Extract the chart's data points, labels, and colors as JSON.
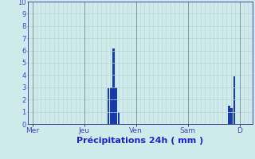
{
  "title": "Précipitations 24h ( mm )",
  "background_color": "#ceeaea",
  "grid_color": "#b8d4d4",
  "bar_color": "#1a3aaa",
  "ylim": [
    0,
    10
  ],
  "yticks": [
    0,
    1,
    2,
    3,
    4,
    5,
    6,
    7,
    8,
    9,
    10
  ],
  "day_labels": [
    "Mer",
    "Jeu",
    "Ven",
    "Sam",
    "D"
  ],
  "day_positions": [
    0,
    60,
    120,
    180,
    240
  ],
  "xlim": [
    -5,
    255
  ],
  "bars": [
    {
      "x": 88,
      "height": 2.9
    },
    {
      "x": 91,
      "height": 3.0
    },
    {
      "x": 94,
      "height": 6.2
    },
    {
      "x": 97,
      "height": 3.0
    },
    {
      "x": 100,
      "height": 1.0
    },
    {
      "x": 228,
      "height": 1.5
    },
    {
      "x": 231,
      "height": 1.3
    },
    {
      "x": 234,
      "height": 3.9
    }
  ],
  "xlabel_color": "#2222cc",
  "tick_color": "#4444bb",
  "ytick_fontsize": 6.0,
  "xtick_fontsize": 6.5,
  "label_fontsize": 8.0,
  "vline_color": "#7a9999",
  "spine_color": "#4444aa"
}
